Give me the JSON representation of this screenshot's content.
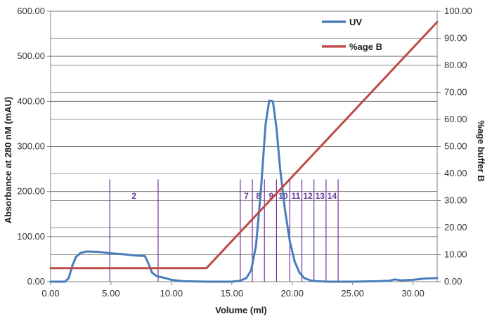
{
  "chart_data": {
    "type": "line",
    "xlabel": "Volume (ml)",
    "ylabel": "Absorbance at 280 nM  (mAU)",
    "y2label": "%age buffer B",
    "xlim": [
      0,
      32
    ],
    "ylim": [
      0,
      600
    ],
    "y2lim": [
      0,
      100
    ],
    "x_ticks": [
      "0.00",
      "5.00",
      "10.00",
      "15.00",
      "20.00",
      "25.00",
      "30.00"
    ],
    "y_ticks": [
      "0.00",
      "100.00",
      "200.00",
      "300.00",
      "400.00",
      "500.00",
      "600.00"
    ],
    "y2_ticks": [
      "0.00",
      "10.00",
      "20.00",
      "30.00",
      "40.00",
      "50.00",
      "60.00",
      "70.00",
      "80.00",
      "90.00",
      "100.00"
    ],
    "grid": true,
    "legend_position": "top-right",
    "series": [
      {
        "name": "UV",
        "axis": "left",
        "color": "#4a7ebb",
        "x": [
          0,
          1.2,
          1.5,
          1.8,
          2.1,
          2.5,
          3,
          4,
          5,
          6,
          7,
          7.8,
          8.1,
          8.4,
          8.8,
          9.5,
          10,
          11,
          13,
          15,
          15.7,
          16.2,
          16.6,
          17,
          17.4,
          17.8,
          18.1,
          18.4,
          18.7,
          19,
          19.4,
          19.8,
          20.2,
          20.6,
          21,
          21.5,
          22,
          23,
          25,
          27,
          28,
          28.5,
          29,
          30,
          31,
          32
        ],
        "y": [
          0,
          0,
          8,
          35,
          55,
          64,
          67,
          66,
          63,
          61,
          58,
          57,
          40,
          20,
          12,
          8,
          4,
          1,
          0,
          0,
          2,
          8,
          25,
          80,
          200,
          350,
          402,
          400,
          340,
          250,
          160,
          90,
          45,
          20,
          8,
          3,
          1,
          0,
          0,
          1,
          2,
          5,
          3,
          4,
          7,
          8
        ]
      },
      {
        "name": "%age B",
        "axis": "right",
        "color": "#be4b48",
        "x": [
          0,
          12.9,
          32
        ],
        "y": [
          5,
          5,
          96
        ]
      }
    ],
    "fraction_markers": {
      "color": "#7030a0",
      "lines": [
        4.9,
        8.9,
        15.7,
        16.7,
        17.7,
        18.7,
        19.8,
        20.8,
        21.8,
        22.8,
        23.8
      ],
      "top_value": 227,
      "labels": [
        {
          "text": "2",
          "x": 6.9
        },
        {
          "text": "7",
          "x": 16.2
        },
        {
          "text": "8",
          "x": 17.2
        },
        {
          "text": "9",
          "x": 18.25
        },
        {
          "text": "10",
          "x": 19.25
        },
        {
          "text": "11",
          "x": 20.3
        },
        {
          "text": "12",
          "x": 21.3
        },
        {
          "text": "13",
          "x": 22.3
        },
        {
          "text": "14",
          "x": 23.3
        }
      ],
      "label_value": 192
    }
  }
}
